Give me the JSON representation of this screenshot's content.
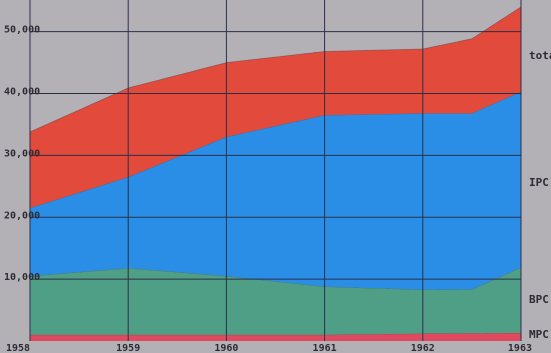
{
  "chart_data": {
    "type": "area",
    "stacked": true,
    "title": "",
    "xlabel": "",
    "ylabel": "",
    "x": [
      1958,
      1959,
      1960,
      1961,
      1962,
      1963
    ],
    "x_ticks": [
      1958,
      1959,
      1960,
      1961,
      1962,
      1963
    ],
    "x_tick_labels": [
      "1958",
      "1959",
      "1960",
      "1961",
      "1962",
      "1963"
    ],
    "y_ticks": [
      10000,
      20000,
      30000,
      40000,
      50000
    ],
    "y_tick_labels": [
      "10,000",
      "20,000",
      "30,000",
      "40,000",
      "50,000"
    ],
    "ylim": [
      0,
      55600
    ],
    "xlim": [
      1958,
      1963
    ],
    "grid": true,
    "series": [
      {
        "name": "MPC",
        "color": "#e04a5e",
        "points": [
          [
            1958,
            1000
          ],
          [
            1959,
            1000
          ],
          [
            1960,
            1000
          ],
          [
            1961,
            1000
          ],
          [
            1962,
            1200
          ],
          [
            1963,
            1300
          ]
        ]
      },
      {
        "name": "BPC",
        "color": "#4f9e86",
        "points": [
          [
            1958,
            9500
          ],
          [
            1959,
            10800
          ],
          [
            1960,
            9500
          ],
          [
            1961,
            7800
          ],
          [
            1962,
            7100
          ],
          [
            1962.5,
            7100
          ],
          [
            1963,
            10600
          ]
        ]
      },
      {
        "name": "IPC",
        "color": "#2a8ee6",
        "points": [
          [
            1958,
            11000
          ],
          [
            1959,
            14700
          ],
          [
            1960,
            22500
          ],
          [
            1961,
            27700
          ],
          [
            1962,
            28500
          ],
          [
            1963,
            28400
          ]
        ]
      },
      {
        "name": "total",
        "color": "#e24a3b",
        "points": [
          [
            1958,
            12300
          ],
          [
            1959,
            14400
          ],
          [
            1960,
            12000
          ],
          [
            1961,
            10300
          ],
          [
            1962,
            10400
          ],
          [
            1963,
            13700
          ]
        ]
      }
    ]
  }
}
